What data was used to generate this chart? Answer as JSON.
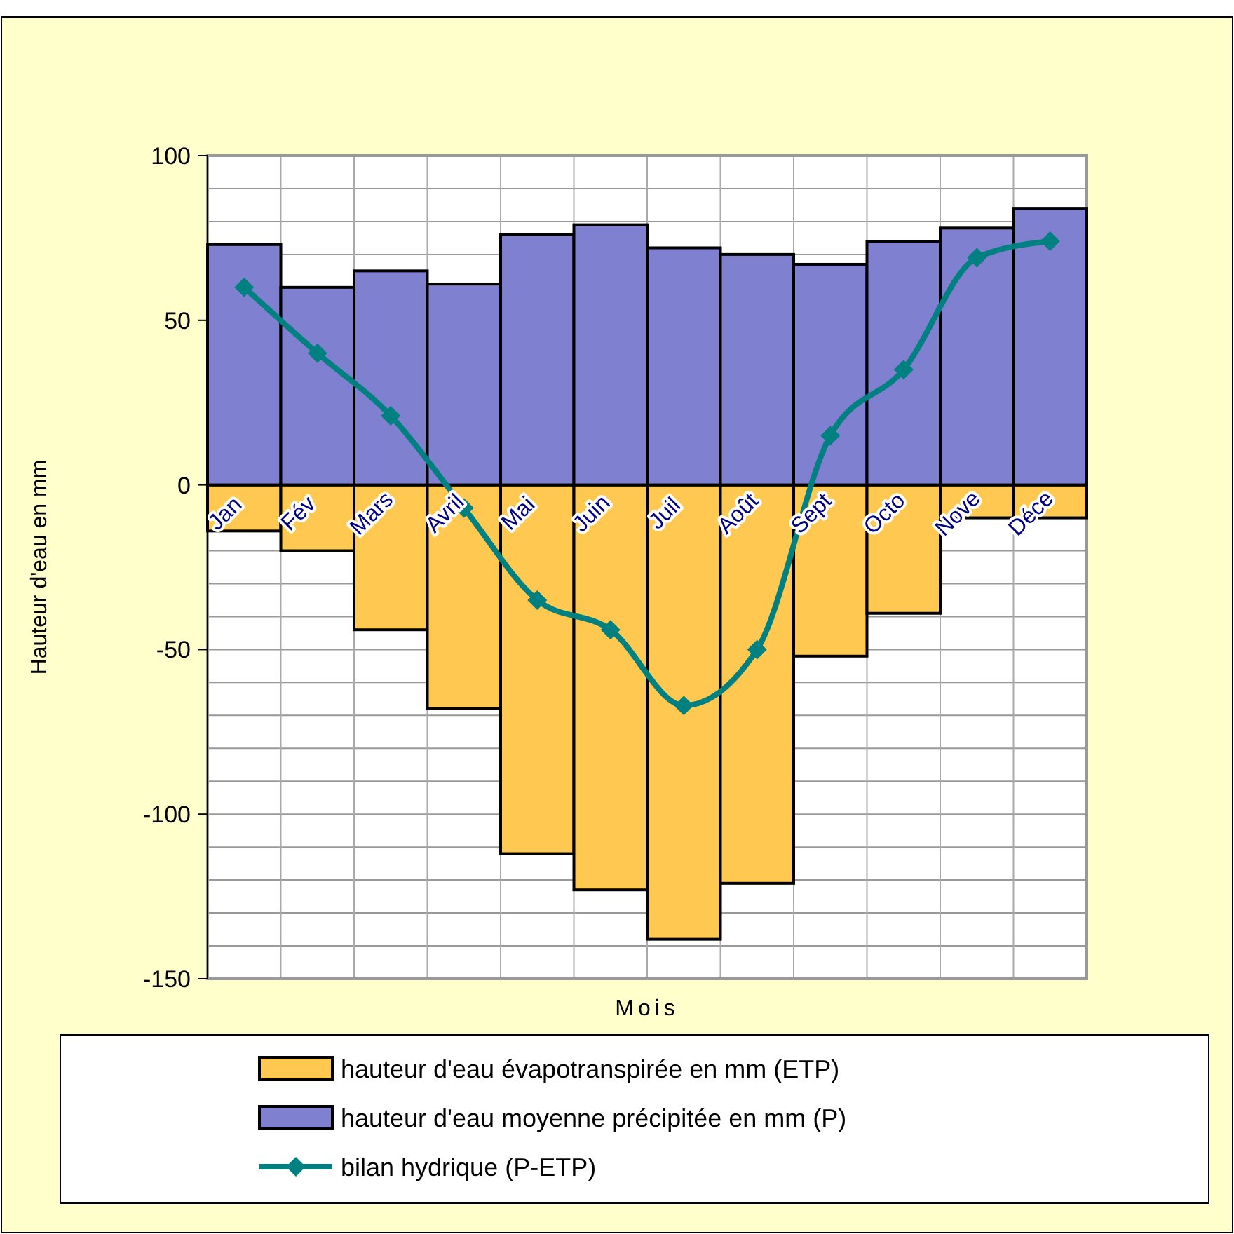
{
  "chart_data": {
    "type": "bar",
    "xlabel": "Mois",
    "ylabel": "Hauteur d'eau en mm",
    "categories": [
      "Jan",
      "Fév",
      "Mars",
      "Avril",
      "Mai",
      "Juin",
      "Juil",
      "Août",
      "Sept",
      "Octo",
      "Nove",
      "Déce"
    ],
    "series": [
      {
        "name": "hauteur d'eau évapotranspirée en mm (ETP)",
        "color": "#ffc850",
        "values": [
          -14,
          -20,
          -44,
          -68,
          -112,
          -123,
          -138,
          -121,
          -52,
          -39,
          -10,
          -10
        ]
      },
      {
        "name": "hauteur d'eau moyenne précipitée en mm (P)",
        "color": "#8080d0",
        "values": [
          73,
          60,
          65,
          61,
          76,
          79,
          72,
          70,
          67,
          74,
          78,
          84
        ]
      },
      {
        "name": "bilan hydrique (P-ETP)",
        "type": "line",
        "color": "#008080",
        "values": [
          60,
          40,
          21,
          -7,
          -35,
          -44,
          -67,
          -50,
          15,
          35,
          69,
          74
        ]
      }
    ],
    "stacked": true,
    "ylim": [
      -150,
      100
    ],
    "yticks": [
      -150,
      -100,
      -50,
      0,
      50,
      100
    ],
    "grid": true,
    "legend": "bottom",
    "marker": "diamond",
    "line_style": "solid"
  }
}
